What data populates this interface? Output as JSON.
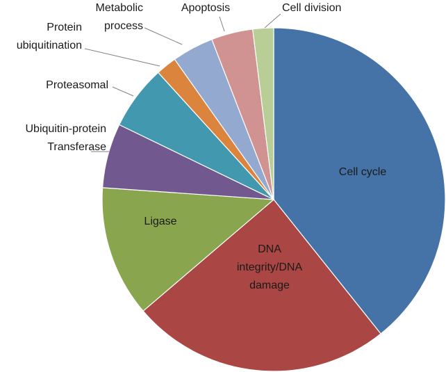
{
  "chart_data": {
    "type": "pie",
    "title": "",
    "start_angle_deg": 0,
    "direction": "clockwise",
    "slices": [
      {
        "label": "Cell cycle",
        "value": 40.1,
        "color": "#4572A7",
        "label_lines": [
          "Cell cycle"
        ]
      },
      {
        "label": "DNA integrity/DNA damage",
        "value": 25.0,
        "color": "#AA4643",
        "label_lines": [
          "DNA",
          "integrity/DNA",
          "damage"
        ]
      },
      {
        "label": "Ligase",
        "value": 12.6,
        "color": "#89A54E",
        "label_lines": [
          "Ligase"
        ]
      },
      {
        "label": "Ubiquitin-protein Transferase",
        "value": 6.2,
        "color": "#71588F",
        "label_lines": [
          "Ubiquitin-protein",
          "Transferase"
        ]
      },
      {
        "label": "Proteasomal",
        "value": 6.2,
        "color": "#4198AF",
        "label_lines": [
          "Proteasomal"
        ]
      },
      {
        "label": "Protein ubiquitination",
        "value": 2.0,
        "color": "#DB843D",
        "label_lines": [
          "Protein",
          "ubiquitination"
        ]
      },
      {
        "label": "Metabolic process",
        "value": 4.0,
        "color": "#93A9CF",
        "label_lines": [
          "Metabolic",
          "process"
        ]
      },
      {
        "label": "Apoptosis",
        "value": 4.0,
        "color": "#D19392",
        "label_lines": [
          "Apoptosis"
        ]
      },
      {
        "label": "Cell division",
        "value": 2.0,
        "color": "#B9CD96",
        "label_lines": [
          "Cell division"
        ]
      }
    ]
  }
}
